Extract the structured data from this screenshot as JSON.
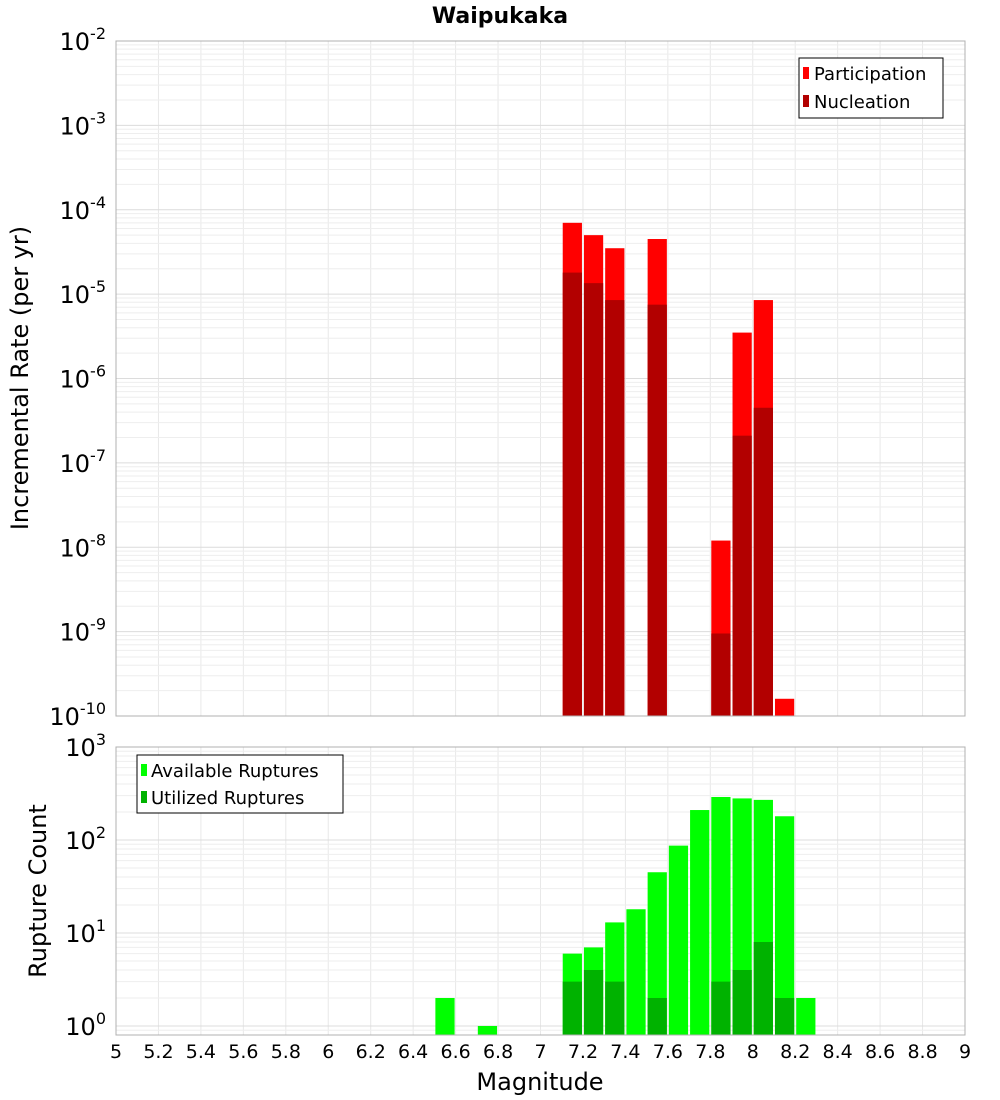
{
  "chart_data": [
    {
      "type": "bar",
      "title": "Waipukaka",
      "ylabel": "Incremental Rate (per yr)",
      "xlabel": "",
      "yscale": "log",
      "ylim": [
        1e-10,
        0.01
      ],
      "xlim": [
        5,
        9
      ],
      "bar_width": 0.1,
      "grid": true,
      "legend_position": "top-right",
      "y_ticks": [
        {
          "base": "10",
          "exp": "-10",
          "value": 1e-10
        },
        {
          "base": "10",
          "exp": "-9",
          "value": 1e-09
        },
        {
          "base": "10",
          "exp": "-8",
          "value": 1e-08
        },
        {
          "base": "10",
          "exp": "-7",
          "value": 1e-07
        },
        {
          "base": "10",
          "exp": "-6",
          "value": 1e-06
        },
        {
          "base": "10",
          "exp": "-5",
          "value": 1e-05
        },
        {
          "base": "10",
          "exp": "-4",
          "value": 0.0001
        },
        {
          "base": "10",
          "exp": "-3",
          "value": 0.001
        },
        {
          "base": "10",
          "exp": "-2",
          "value": 0.01
        }
      ],
      "series": [
        {
          "name": "Participation",
          "color": "#ff0000",
          "x": [
            7.15,
            7.25,
            7.35,
            7.55,
            7.85,
            7.95,
            8.05,
            8.15
          ],
          "values": [
            7e-05,
            5e-05,
            3.5e-05,
            4.5e-05,
            1.2e-08,
            3.5e-06,
            8.5e-06,
            1.6e-10
          ]
        },
        {
          "name": "Nucleation",
          "color": "#b20000",
          "x": [
            7.15,
            7.25,
            7.35,
            7.55,
            7.85,
            7.95,
            8.05
          ],
          "values": [
            1.8e-05,
            1.35e-05,
            8.5e-06,
            7.5e-06,
            9.5e-10,
            2.1e-07,
            4.5e-07
          ]
        }
      ]
    },
    {
      "type": "bar",
      "title": "",
      "ylabel": "Rupture Count",
      "xlabel": "Magnitude",
      "yscale": "log",
      "ylim": [
        0.8,
        1000
      ],
      "xlim": [
        5,
        9
      ],
      "bar_width": 0.1,
      "grid": true,
      "legend_position": "top-left",
      "x_tick_labels": [
        "5",
        "5.2",
        "5.4",
        "5.6",
        "5.8",
        "6",
        "6.2",
        "6.4",
        "6.6",
        "6.8",
        "7",
        "7.2",
        "7.4",
        "7.6",
        "7.8",
        "8",
        "8.2",
        "8.4",
        "8.6",
        "8.8",
        "9"
      ],
      "y_ticks": [
        {
          "base": "10",
          "exp": "0",
          "value": 1
        },
        {
          "base": "10",
          "exp": "1",
          "value": 10
        },
        {
          "base": "10",
          "exp": "2",
          "value": 100
        },
        {
          "base": "10",
          "exp": "3",
          "value": 1000
        }
      ],
      "series": [
        {
          "name": "Available Ruptures",
          "color": "#00ff00",
          "x": [
            6.55,
            6.75,
            7.15,
            7.25,
            7.35,
            7.45,
            7.55,
            7.65,
            7.75,
            7.85,
            7.95,
            8.05,
            8.15,
            8.25
          ],
          "values": [
            2,
            1,
            6,
            7,
            13,
            18,
            45,
            87,
            210,
            290,
            280,
            270,
            180,
            2
          ]
        },
        {
          "name": "Utilized Ruptures",
          "color": "#00b200",
          "x": [
            7.15,
            7.25,
            7.35,
            7.55,
            7.85,
            7.95,
            8.05,
            8.15
          ],
          "values": [
            3,
            4,
            3,
            2,
            3,
            4,
            8,
            2
          ]
        }
      ]
    }
  ]
}
